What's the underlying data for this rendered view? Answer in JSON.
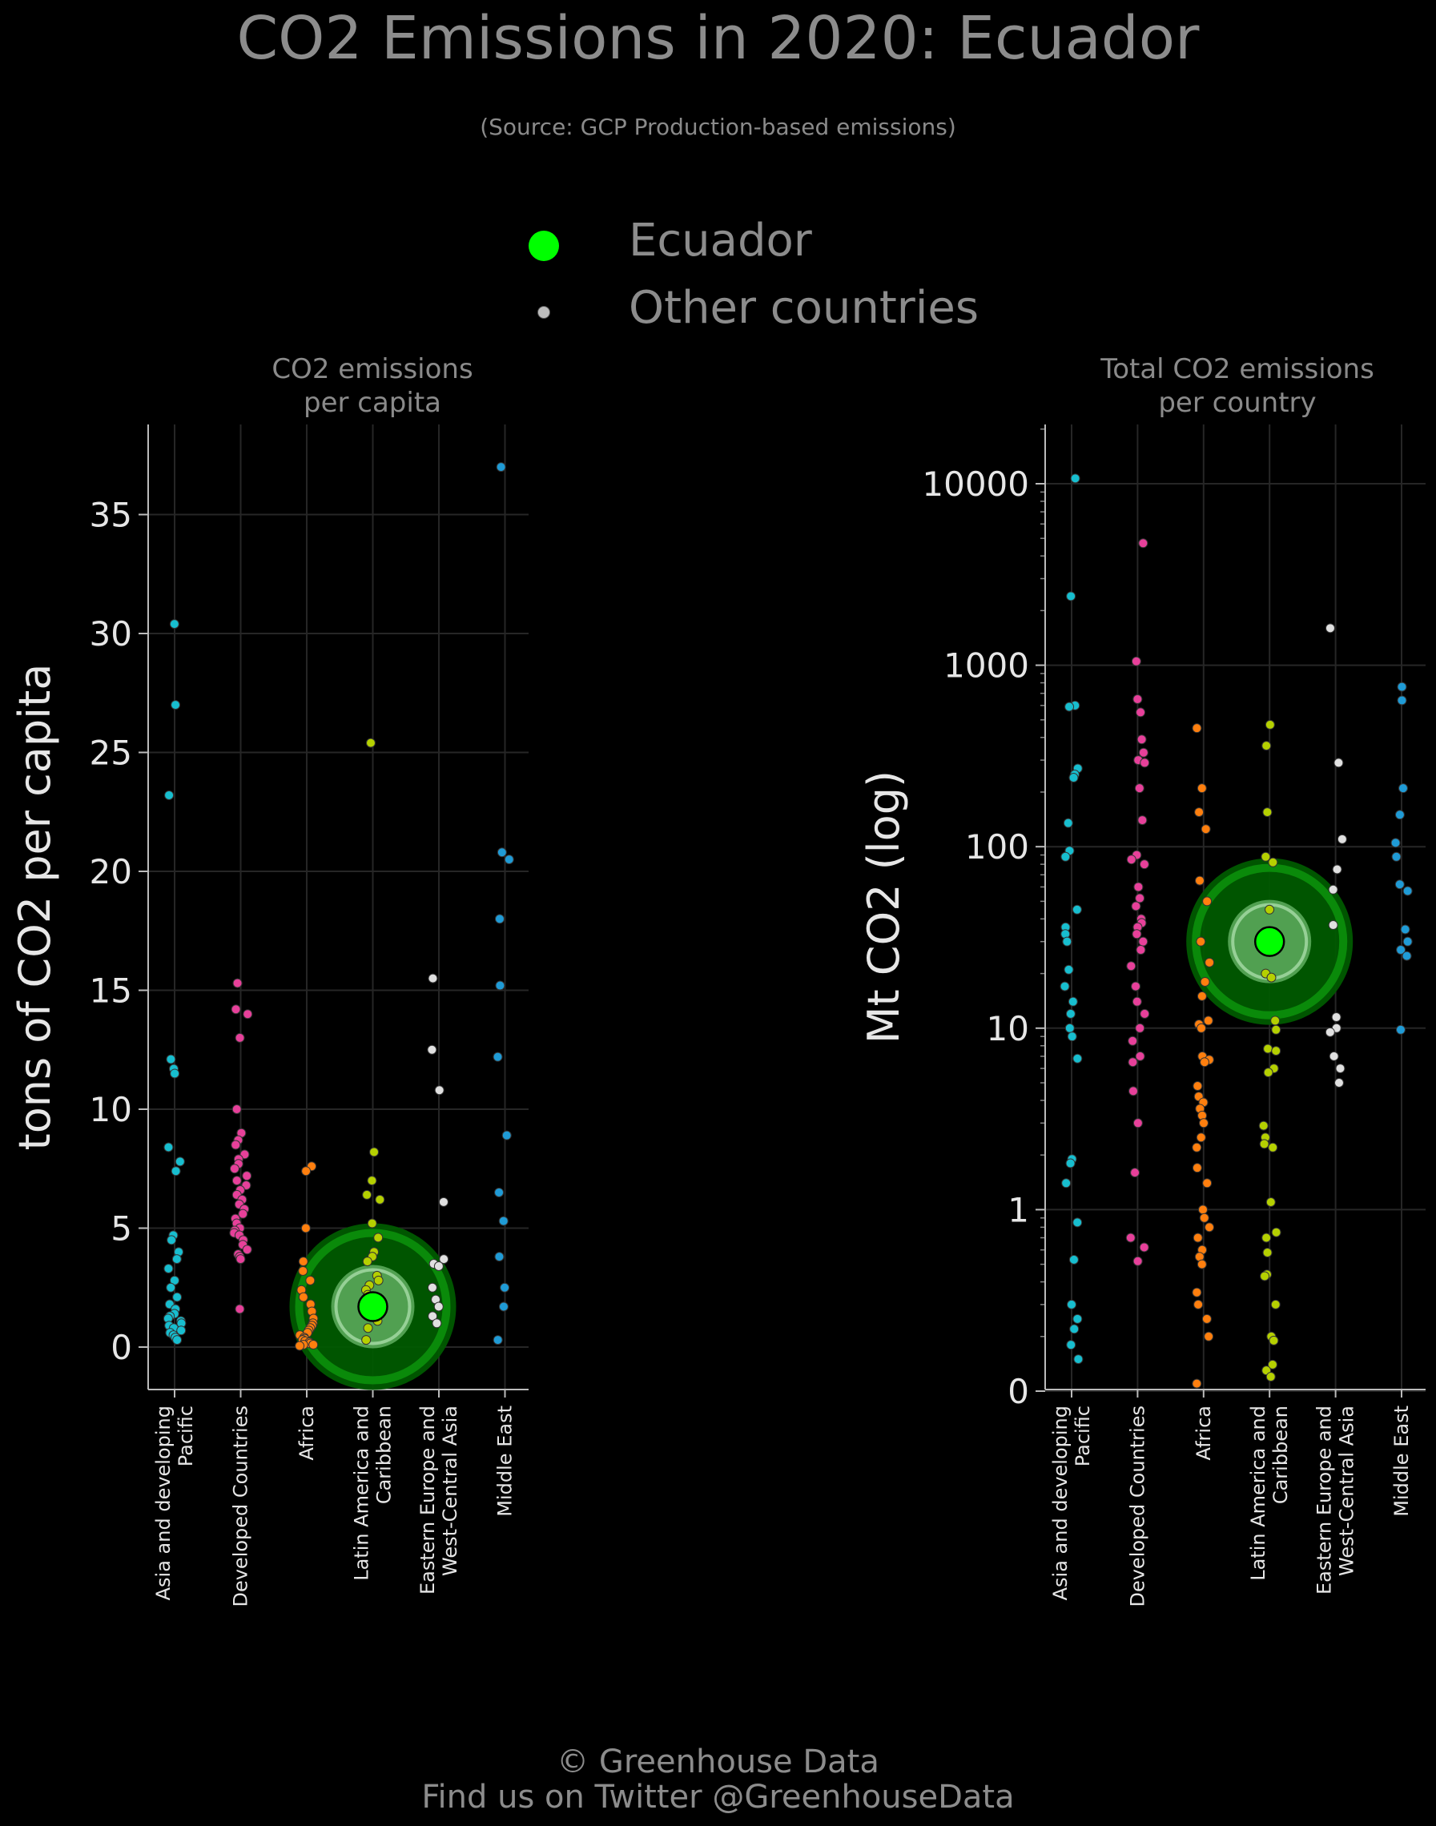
{
  "title": "CO2 Emissions in 2020: Ecuador",
  "subtitle": "(Source: GCP Production-based emissions)",
  "legend": {
    "highlight_label": "Ecuador",
    "other_label": "Other countries",
    "highlight_color": "#00ff00",
    "other_color": "#bdbdbd"
  },
  "footer": {
    "line1": "© Greenhouse Data",
    "line2": "Find us on Twitter @GreenhouseData"
  },
  "categories": [
    "Asia and developing\nPacific",
    "Developed Countries",
    "Africa",
    "Latin America and\nCaribbean",
    "Eastern Europe and\nWest-Central Asia",
    "Middle East"
  ],
  "category_colors": [
    "#17becf",
    "#e7409a",
    "#ff7f0e",
    "#b5d000",
    "#e0e0e0",
    "#1f9bd6"
  ],
  "chart_data": [
    {
      "type": "scatter",
      "title": "CO2 emissions\nper capita",
      "ylabel": "tons of CO2 per capita",
      "ylim": [
        -1.8,
        39
      ],
      "yticks": [
        0,
        5,
        10,
        15,
        20,
        25,
        30,
        35
      ],
      "ytick_labels": [
        "0",
        "5",
        "10",
        "15",
        "20",
        "25",
        "30",
        "35"
      ],
      "highlight": {
        "name": "Ecuador",
        "category_index": 3,
        "value": 1.7
      },
      "series": [
        {
          "category": "Asia and developing Pacific",
          "values": [
            30.4,
            27.0,
            23.2,
            12.1,
            11.7,
            11.5,
            8.4,
            7.8,
            7.4,
            4.7,
            4.5,
            4.0,
            3.7,
            3.3,
            2.8,
            2.5,
            2.1,
            1.8,
            1.6,
            1.4,
            1.3,
            1.2,
            1.1,
            1.0,
            0.9,
            0.8,
            0.7,
            0.6,
            0.5,
            0.4,
            0.3
          ]
        },
        {
          "category": "Developed Countries",
          "values": [
            15.3,
            14.2,
            14.0,
            13.0,
            10.0,
            9.0,
            8.7,
            8.5,
            8.1,
            7.9,
            7.7,
            7.5,
            7.2,
            7.0,
            6.8,
            6.6,
            6.4,
            6.2,
            6.0,
            5.8,
            5.6,
            5.4,
            5.2,
            5.0,
            4.9,
            4.8,
            4.7,
            4.5,
            4.3,
            4.1,
            3.9,
            3.8,
            3.7,
            1.6
          ]
        },
        {
          "category": "Africa",
          "values": [
            7.6,
            7.4,
            5.0,
            3.6,
            3.2,
            2.8,
            2.4,
            2.1,
            1.8,
            1.5,
            1.2,
            1.0,
            0.9,
            0.8,
            0.7,
            0.6,
            0.5,
            0.4,
            0.35,
            0.3,
            0.25,
            0.2,
            0.15,
            0.1,
            0.1,
            0.05
          ]
        },
        {
          "category": "Latin America and Caribbean",
          "values": [
            25.4,
            8.2,
            7.0,
            6.4,
            6.2,
            5.2,
            4.6,
            4.0,
            3.8,
            3.6,
            3.0,
            2.8,
            2.6,
            2.4,
            2.2,
            2.1,
            1.9,
            1.7,
            1.5,
            1.3,
            1.1,
            0.8,
            0.3
          ]
        },
        {
          "category": "Eastern Europe and West-Central Asia",
          "values": [
            15.5,
            12.5,
            10.8,
            6.1,
            3.7,
            3.5,
            3.4,
            2.5,
            2.0,
            1.7,
            1.3,
            1.0
          ]
        },
        {
          "category": "Middle East",
          "values": [
            37.0,
            20.8,
            20.5,
            18.0,
            15.2,
            12.2,
            8.9,
            6.5,
            5.3,
            3.8,
            2.5,
            1.7,
            0.3
          ]
        }
      ]
    },
    {
      "type": "scatter",
      "title": "Total CO2 emissions\nper country",
      "ylabel": "Mt CO2 (log)",
      "yscale": "log",
      "ylim": [
        0.1,
        20000
      ],
      "yticks": [
        0.1,
        1,
        10,
        100,
        1000,
        10000
      ],
      "ytick_labels": [
        "0",
        "1",
        "10",
        "100",
        "1000",
        "10000"
      ],
      "highlight": {
        "name": "Ecuador",
        "category_index": 3,
        "value": 30
      },
      "series": [
        {
          "category": "Asia and developing Pacific",
          "values": [
            10700,
            2400,
            600,
            590,
            270,
            250,
            240,
            135,
            95,
            88,
            45,
            36,
            33,
            30,
            21,
            17,
            14,
            12,
            10,
            9,
            6.8,
            1.9,
            1.8,
            1.4,
            0.85,
            0.53,
            0.3,
            0.25,
            0.22,
            0.18,
            0.15
          ]
        },
        {
          "category": "Developed Countries",
          "values": [
            4700,
            1050,
            650,
            550,
            390,
            330,
            300,
            290,
            210,
            140,
            90,
            85,
            80,
            60,
            52,
            47,
            40,
            38,
            36,
            33,
            30,
            27,
            22,
            17,
            14,
            12,
            10,
            8.5,
            7,
            6.5,
            4.5,
            3,
            1.6,
            0.7,
            0.62,
            0.52
          ]
        },
        {
          "category": "Africa",
          "values": [
            450,
            210,
            155,
            125,
            65,
            50,
            30,
            23,
            18,
            15,
            11,
            10.5,
            10,
            7,
            6.7,
            6.5,
            4.8,
            4.2,
            3.9,
            3.6,
            3.3,
            3.0,
            2.5,
            2.2,
            1.7,
            1.4,
            1.0,
            0.9,
            0.8,
            0.7,
            0.6,
            0.55,
            0.5,
            0.35,
            0.3,
            0.25,
            0.2,
            0.11
          ]
        },
        {
          "category": "Latin America and Caribbean",
          "values": [
            470,
            360,
            155,
            88,
            82,
            45,
            20,
            19,
            11,
            9.8,
            7.7,
            7.5,
            6.0,
            5.7,
            2.9,
            2.5,
            2.3,
            2.2,
            1.1,
            0.75,
            0.7,
            0.58,
            0.44,
            0.43,
            0.3,
            0.2,
            0.19,
            0.14,
            0.13,
            0.12
          ]
        },
        {
          "category": "Eastern Europe and West-Central Asia",
          "values": [
            1600,
            290,
            110,
            75,
            58,
            37,
            11.5,
            10,
            9.5,
            7,
            6,
            5
          ]
        },
        {
          "category": "Middle East",
          "values": [
            760,
            640,
            210,
            150,
            105,
            88,
            62,
            57,
            35,
            30,
            27,
            25,
            9.8
          ]
        }
      ]
    }
  ]
}
